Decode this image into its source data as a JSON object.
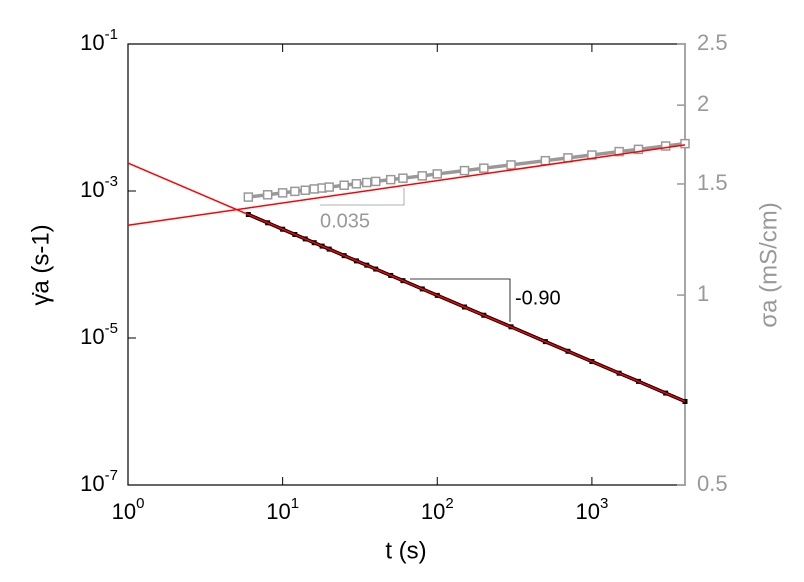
{
  "chart_data": {
    "type": "line",
    "xlabel": "t (s)",
    "ylabel": "γ̇a (s-1)",
    "y2label": "σa (mS/cm)",
    "xlog": true,
    "ylog": true,
    "y2log": true,
    "grid": false,
    "xlim": [
      1,
      4000
    ],
    "xticks": [
      {
        "value": 1,
        "label": "100"
      },
      {
        "value": 10,
        "label": "101"
      },
      {
        "value": 100,
        "label": "102"
      },
      {
        "value": 1000,
        "label": "103"
      }
    ],
    "ylim": [
      1e-07,
      0.1
    ],
    "yticks": [
      {
        "value": 1e-07,
        "label": "10-7"
      },
      {
        "value": 1e-05,
        "label": "10-5"
      },
      {
        "value": 0.001,
        "label": "10-3"
      },
      {
        "value": 0.1,
        "label": "10-1"
      }
    ],
    "y2lim": [
      0.5,
      2.5
    ],
    "y2ticks": [
      0.5,
      1,
      1.5,
      2,
      2.5
    ],
    "y2color": "#999999",
    "x": [
      6,
      8,
      10,
      12,
      14,
      16,
      18,
      20,
      25,
      30,
      35,
      40,
      50,
      60,
      80,
      100,
      150,
      200,
      300,
      500,
      700,
      1000,
      1500,
      2000,
      3000,
      4000
    ],
    "series": [
      {
        "color": "#000000",
        "marker": "filled-square",
        "values": [
          0.000479,
          0.000369,
          0.000302,
          0.000256,
          0.000223,
          0.000198,
          0.000178,
          0.000162,
          0.000132,
          0.000112,
          9.79e-05,
          8.67e-05,
          7.1e-05,
          6.03e-05,
          4.65e-05,
          3.8e-05,
          2.64e-05,
          2.04e-05,
          1.42e-05,
          8.93e-06,
          6.6e-06,
          4.79e-06,
          3.32e-06,
          2.57e-06,
          1.78e-06,
          1.37e-06
        ]
      },
      {
        "color": "#999999",
        "marker": "open-square",
        "axis": "y2",
        "values": [
          1.43,
          1.442,
          1.452,
          1.46,
          1.466,
          1.473,
          1.478,
          1.483,
          1.493,
          1.501,
          1.508,
          1.514,
          1.524,
          1.532,
          1.545,
          1.556,
          1.575,
          1.589,
          1.608,
          1.633,
          1.65,
          1.667,
          1.688,
          1.702,
          1.723,
          1.738
        ]
      }
    ],
    "fits": [
      {
        "color": "#ff0000",
        "x": [
          1,
          4000
        ],
        "values": [
          0.0024,
          1.37e-06
        ]
      },
      {
        "color": "#ff0000",
        "axis": "y2",
        "x": [
          1,
          4000
        ],
        "values": [
          1.29,
          1.73
        ]
      }
    ],
    "annotations": [
      {
        "text": "-0.90",
        "color": "#000000"
      },
      {
        "text": "0.035",
        "color": "#999999"
      }
    ]
  }
}
